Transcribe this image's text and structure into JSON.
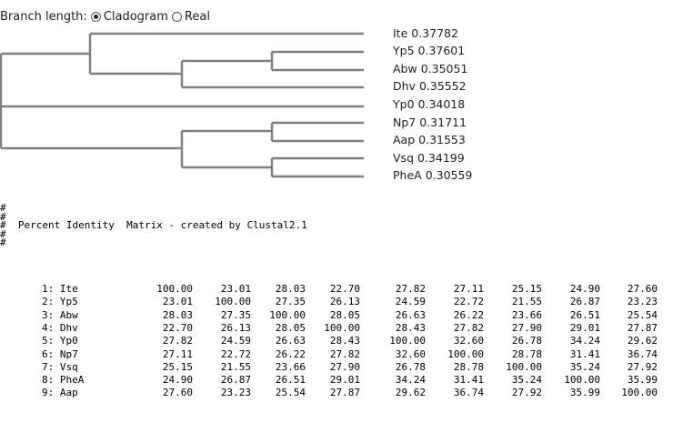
{
  "branch_options": {
    "label": "Branch length:",
    "options": [
      {
        "label": "Cladogram",
        "selected": true
      },
      {
        "label": "Real",
        "selected": false
      }
    ]
  },
  "tree_leaves": [
    {
      "name": "Ite",
      "value": "0.37782"
    },
    {
      "name": "Yp5",
      "value": "0.37601"
    },
    {
      "name": "Abw",
      "value": "0.35051"
    },
    {
      "name": "Dhv",
      "value": "0.35552"
    },
    {
      "name": "Yp0",
      "value": "0.34018"
    },
    {
      "name": "Np7",
      "value": "0.31711"
    },
    {
      "name": "Aap",
      "value": "0.31553"
    },
    {
      "name": "Vsq",
      "value": "0.34199"
    },
    {
      "name": "PheA",
      "value": "0.30559"
    }
  ],
  "matrix_header_lines": [
    "#",
    "#",
    "#  Percent Identity  Matrix - created by Clustal2.1",
    "#",
    "#"
  ],
  "matrix": {
    "labels": [
      "1: Ite",
      "2: Yp5",
      "3: Abw",
      "4: Dhv",
      "5: Yp0",
      "6: Np7",
      "7: Vsq",
      "8: PheA",
      "9: Aap"
    ],
    "rows": [
      [
        "100.00",
        "23.01",
        "28.03",
        "22.70",
        "27.82",
        "27.11",
        "25.15",
        "24.90",
        "27.60"
      ],
      [
        "23.01",
        "100.00",
        "27.35",
        "26.13",
        "24.59",
        "22.72",
        "21.55",
        "26.87",
        "23.23"
      ],
      [
        "28.03",
        "27.35",
        "100.00",
        "28.05",
        "26.63",
        "26.22",
        "23.66",
        "26.51",
        "25.54"
      ],
      [
        "22.70",
        "26.13",
        "28.05",
        "100.00",
        "28.43",
        "27.82",
        "27.90",
        "29.01",
        "27.87"
      ],
      [
        "27.82",
        "24.59",
        "26.63",
        "28.43",
        "100.00",
        "32.60",
        "26.78",
        "34.24",
        "29.62"
      ],
      [
        "27.11",
        "22.72",
        "26.22",
        "27.82",
        "32.60",
        "100.00",
        "28.78",
        "31.41",
        "36.74"
      ],
      [
        "25.15",
        "21.55",
        "23.66",
        "27.90",
        "26.78",
        "28.78",
        "100.00",
        "35.24",
        "27.92"
      ],
      [
        "24.90",
        "26.87",
        "26.51",
        "29.01",
        "34.24",
        "31.41",
        "35.24",
        "100.00",
        "35.99"
      ],
      [
        "27.60",
        "23.23",
        "25.54",
        "27.87",
        "29.62",
        "36.74",
        "27.92",
        "35.99",
        "100.00"
      ]
    ]
  }
}
